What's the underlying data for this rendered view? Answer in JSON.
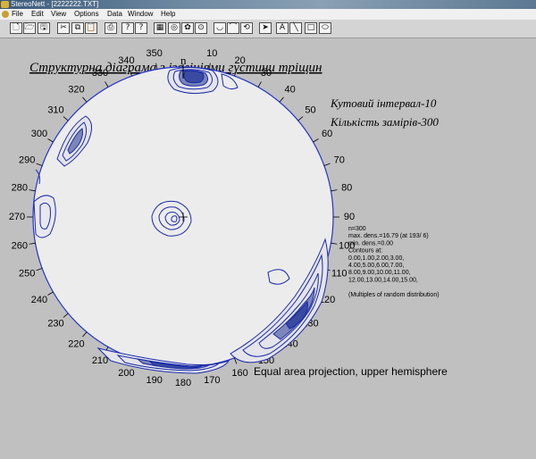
{
  "window": {
    "title": "StereoNett - [2222222.TXT]"
  },
  "menu": [
    "File",
    "Edit",
    "View",
    "Options",
    "Data",
    "Window",
    "Help"
  ],
  "toolbar": [
    {
      "icon": "new-file-icon",
      "glyph": "🗋"
    },
    {
      "icon": "open-folder-icon",
      "glyph": "🗁"
    },
    {
      "icon": "save-icon",
      "glyph": "🖫"
    },
    {
      "icon": "cut-icon",
      "glyph": "✂"
    },
    {
      "icon": "copy-icon",
      "glyph": "⧉"
    },
    {
      "icon": "paste-icon",
      "glyph": "📋"
    },
    {
      "icon": "print-icon",
      "glyph": "⎙"
    },
    {
      "icon": "help-icon",
      "glyph": "?"
    },
    {
      "icon": "context-help-icon",
      "glyph": "?"
    },
    {
      "icon": "data-grid-icon",
      "glyph": "▦"
    },
    {
      "icon": "contour-plot-icon",
      "glyph": "◎"
    },
    {
      "icon": "rose-plot-icon",
      "glyph": "✿"
    },
    {
      "icon": "pole-plot-icon",
      "glyph": "⊙"
    },
    {
      "icon": "great-circle-icon",
      "glyph": "◡"
    },
    {
      "icon": "arc-icon",
      "glyph": "⌒"
    },
    {
      "icon": "rotate-icon",
      "glyph": "⟲"
    },
    {
      "icon": "pointer-icon",
      "glyph": "➤"
    },
    {
      "icon": "text-tool-icon",
      "glyph": "A"
    },
    {
      "icon": "line-tool-icon",
      "glyph": "╲"
    },
    {
      "icon": "rectangle-tool-icon",
      "glyph": "□"
    },
    {
      "icon": "ellipse-tool-icon",
      "glyph": "⬭"
    }
  ],
  "diagram": {
    "title": "Структурна діаграма з ізолініями густини тріщин",
    "angular_interval": "Кутовий інтервал-10",
    "measurements": "Кількість замірів-300",
    "north_label": "n",
    "azimuth_ticks": [
      "10",
      "20",
      "30",
      "40",
      "50",
      "60",
      "70",
      "80",
      "90",
      "100",
      "110",
      "120",
      "130",
      "140",
      "150",
      "160",
      "170",
      "180",
      "190",
      "200",
      "210",
      "220",
      "230",
      "240",
      "250",
      "260",
      "270",
      "280",
      "290",
      "300",
      "310",
      "320",
      "330",
      "340",
      "350"
    ],
    "stats": [
      "n=300",
      "max. dens.=16.79 (at 193/  6)",
      "min. dens.=0.00",
      "Contours at:",
      "0.00,1.00,2.00,3.00,",
      "4.00,5.00,6.00,7.00,",
      "8.00,9.00,10.00,11.00,",
      "12.00,13.00,14.00,15.00,",
      "",
      "(Multiples of random distribution)"
    ],
    "projection": "Equal area projection, upper hemisphere",
    "colors": {
      "outline": "#2233cc",
      "contour": "#1a2aa8",
      "fill": "#ececec",
      "dense": "#3a4aa0"
    }
  }
}
